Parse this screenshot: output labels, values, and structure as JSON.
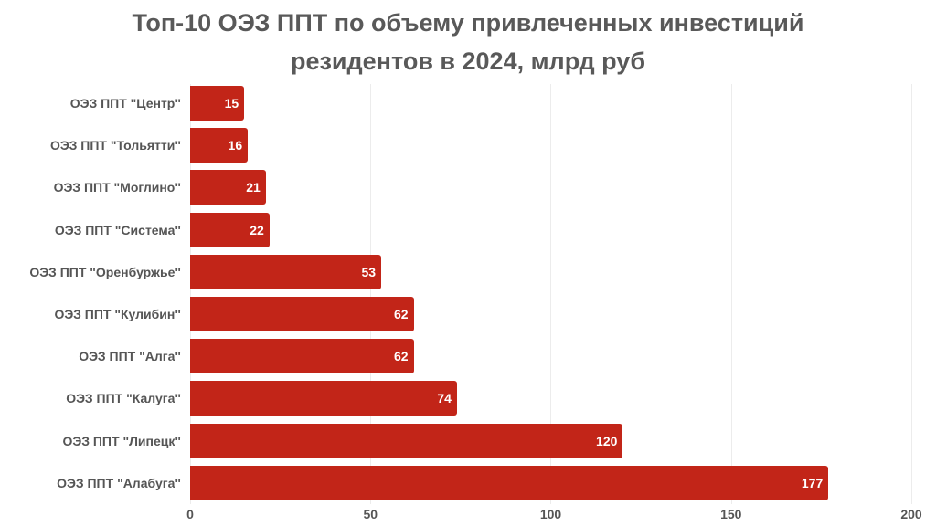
{
  "chart_data": {
    "type": "bar",
    "orientation": "horizontal",
    "title": "Топ-10 ОЭЗ ППТ по объему привлеченных инвестиций резидентов в 2024, млрд руб",
    "title_lines": [
      "Топ-10 ОЭЗ ППТ по объему привлеченных инвестиций",
      "резидентов в 2024, млрд руб"
    ],
    "categories": [
      "ОЭЗ ППТ \"Центр\"",
      "ОЭЗ ППТ \"Тольятти\"",
      "ОЭЗ ППТ \"Моглино\"",
      "ОЭЗ ППТ \"Система\"",
      "ОЭЗ ППТ \"Оренбуржье\"",
      "ОЭЗ ППТ \"Кулибин\"",
      "ОЭЗ ППТ \"Алга\"",
      "ОЭЗ ППТ \"Калуга\"",
      "ОЭЗ ППТ \"Липецк\"",
      "ОЭЗ ППТ \"Алабуга\""
    ],
    "values": [
      15,
      16,
      21,
      22,
      53,
      62,
      62,
      74,
      120,
      177
    ],
    "xlabel": "",
    "ylabel": "",
    "xlim": [
      0,
      200
    ],
    "x_ticks": [
      "0",
      "50",
      "100",
      "150",
      "200"
    ],
    "grid": true,
    "legend": null,
    "data_labels": true,
    "bar_color": "#c22518"
  }
}
